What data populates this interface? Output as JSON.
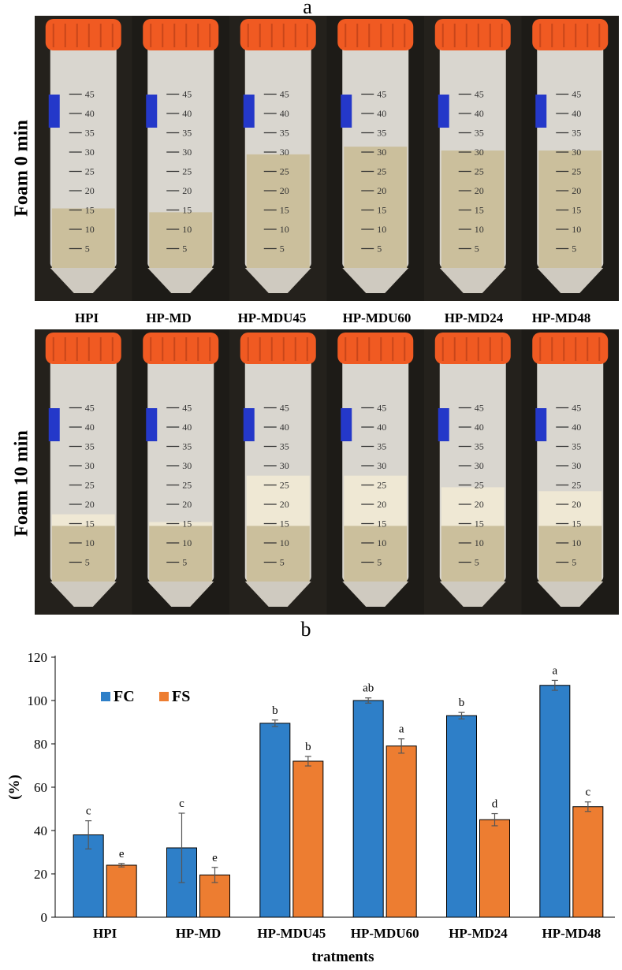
{
  "panels": {
    "a_label": "a",
    "b_label": "b",
    "row1_label": "Foam 0 min",
    "row2_label": "Foam 10 min"
  },
  "tube_labels": [
    "HPI",
    "HP-MD",
    "HP-MDU45",
    "HP-MDU60",
    "HP-MD24",
    "HP-MD48"
  ],
  "tube_scale": {
    "unit": "mL",
    "marks": [
      "45",
      "40",
      "35",
      "30",
      "25",
      "20",
      "15",
      "10",
      "5"
    ]
  },
  "photo": {
    "row1_liquid_ml": [
      15,
      14,
      29,
      31,
      30,
      30
    ],
    "row2_foam_top_ml": [
      17,
      15,
      27,
      27,
      24,
      23
    ],
    "row2_liquid_ml": [
      14,
      14,
      14,
      14,
      14,
      14
    ]
  },
  "colors": {
    "cap": "#f05a22",
    "label_tape": "#2438c9",
    "fc": "#2e7fc8",
    "fs": "#ed7d31"
  },
  "chart_data": {
    "type": "bar",
    "title": "",
    "xlabel": "tratments",
    "ylabel": "(%)",
    "ylim": [
      0,
      120
    ],
    "yticks": [
      "0",
      "20",
      "40",
      "60",
      "80",
      "100",
      "120"
    ],
    "categories": [
      "HPI",
      "HP-MD",
      "HP-MDU45",
      "HP-MDU60",
      "HP-MD24",
      "HP-MD48"
    ],
    "legend_position": "top-left",
    "series": [
      {
        "name": "FC",
        "values": [
          38,
          32,
          89.5,
          100,
          93,
          107
        ],
        "errors": [
          6.5,
          16,
          1.5,
          1.2,
          1.5,
          2.3
        ],
        "letters": [
          "c",
          "c",
          "b",
          "ab",
          "b",
          "a"
        ]
      },
      {
        "name": "FS",
        "values": [
          24,
          19.5,
          72,
          79,
          45,
          51
        ],
        "errors": [
          0.8,
          3.5,
          2.2,
          3.3,
          2.8,
          2.2
        ],
        "letters": [
          "e",
          "e",
          "b",
          "a",
          "d",
          "c"
        ]
      }
    ]
  }
}
